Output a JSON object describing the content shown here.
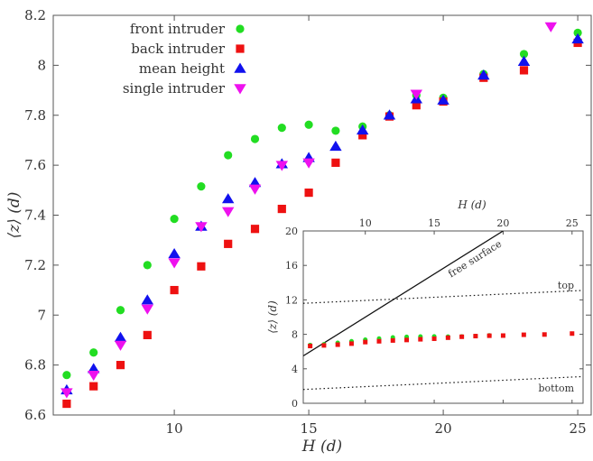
{
  "chart_data": [
    {
      "type": "scatter",
      "xlabel": "H (d)",
      "ylabel": "⟨z⟩ (d)",
      "xlim": [
        5.5,
        25.5
      ],
      "ylim": [
        6.6,
        8.2
      ],
      "xticks": [
        "10",
        "15",
        "20",
        "25"
      ],
      "yticks": [
        "6.6",
        "6.8",
        "7",
        "7.2",
        "7.4",
        "7.6",
        "7.8",
        "8",
        "8.2"
      ],
      "legend_position": "top-left",
      "series": [
        {
          "name": "front intruder",
          "marker": "circle",
          "color": "#22dd22",
          "points": [
            [
              6,
              6.76
            ],
            [
              7,
              6.85
            ],
            [
              8,
              7.02
            ],
            [
              9,
              7.2
            ],
            [
              10,
              7.385
            ],
            [
              11,
              7.515
            ],
            [
              12,
              7.64
            ],
            [
              13,
              7.705
            ],
            [
              14,
              7.75
            ],
            [
              15,
              7.762
            ],
            [
              16,
              7.738
            ],
            [
              17,
              7.755
            ],
            [
              18,
              7.8
            ],
            [
              19,
              7.88
            ],
            [
              20,
              7.87
            ],
            [
              21.5,
              7.965
            ],
            [
              23,
              8.045
            ],
            [
              25,
              8.13
            ]
          ]
        },
        {
          "name": "back intruder",
          "marker": "square",
          "color": "#ee1111",
          "points": [
            [
              6,
              6.645
            ],
            [
              7,
              6.715
            ],
            [
              8,
              6.8
            ],
            [
              9,
              6.92
            ],
            [
              10,
              7.1
            ],
            [
              11,
              7.195
            ],
            [
              12,
              7.285
            ],
            [
              13,
              7.345
            ],
            [
              14,
              7.425
            ],
            [
              15,
              7.49
            ],
            [
              16,
              7.61
            ],
            [
              17,
              7.72
            ],
            [
              18,
              7.795
            ],
            [
              19,
              7.84
            ],
            [
              20,
              7.855
            ],
            [
              21.5,
              7.95
            ],
            [
              23,
              7.98
            ],
            [
              25,
              8.09
            ]
          ]
        },
        {
          "name": "mean height",
          "marker": "triangle-up",
          "color": "#1111ee",
          "points": [
            [
              6,
              6.7
            ],
            [
              7,
              6.785
            ],
            [
              8,
              6.91
            ],
            [
              9,
              7.06
            ],
            [
              10,
              7.245
            ],
            [
              11,
              7.355
            ],
            [
              12,
              7.465
            ],
            [
              13,
              7.53
            ],
            [
              14,
              7.605
            ],
            [
              15,
              7.63
            ],
            [
              16,
              7.675
            ],
            [
              17,
              7.74
            ],
            [
              18,
              7.8
            ],
            [
              19,
              7.865
            ],
            [
              20,
              7.86
            ],
            [
              21.5,
              7.96
            ],
            [
              23,
              8.015
            ],
            [
              25,
              8.105
            ]
          ]
        },
        {
          "name": "single intruder",
          "marker": "triangle-down",
          "color": "#ee11ee",
          "points": [
            [
              6,
              6.69
            ],
            [
              7,
              6.76
            ],
            [
              8,
              6.88
            ],
            [
              9,
              7.025
            ],
            [
              10,
              7.21
            ],
            [
              11,
              7.355
            ],
            [
              12,
              7.415
            ],
            [
              13,
              7.505
            ],
            [
              14,
              7.6
            ],
            [
              15,
              7.61
            ],
            [
              19,
              7.885
            ],
            [
              24,
              8.155
            ]
          ]
        }
      ]
    },
    {
      "type": "scatter",
      "inset": true,
      "xlabel": "H (d)",
      "ylabel": "⟨z⟩ (d)",
      "xlim": [
        5.5,
        25.8
      ],
      "ylim": [
        0,
        20
      ],
      "xticks": [
        "10",
        "15",
        "20",
        "25"
      ],
      "yticks": [
        "0",
        "4",
        "8",
        "12",
        "16",
        "20"
      ],
      "annotations": [
        "free surface",
        "top",
        "bottom"
      ],
      "lines": [
        {
          "name": "free surface",
          "style": "solid",
          "points": [
            [
              5.5,
              5.5
            ],
            [
              20,
              20
            ]
          ]
        },
        {
          "name": "top",
          "style": "dotted",
          "points": [
            [
              5.5,
              11.6
            ],
            [
              25.8,
              13.1
            ]
          ]
        },
        {
          "name": "bottom",
          "style": "dotted",
          "points": [
            [
              5.5,
              1.6
            ],
            [
              25.8,
              3.1
            ]
          ]
        }
      ],
      "series": [
        {
          "marker": "circle",
          "color": "#22dd22",
          "points": [
            [
              6,
              6.76
            ],
            [
              7,
              6.85
            ],
            [
              8,
              7.02
            ],
            [
              9,
              7.2
            ],
            [
              10,
              7.385
            ],
            [
              11,
              7.515
            ],
            [
              12,
              7.64
            ],
            [
              13,
              7.705
            ],
            [
              14,
              7.75
            ],
            [
              15,
              7.762
            ],
            [
              16,
              7.738
            ],
            [
              17,
              7.755
            ],
            [
              18,
              7.8
            ],
            [
              19,
              7.88
            ]
          ]
        },
        {
          "marker": "square",
          "color": "#ee1111",
          "points": [
            [
              6,
              6.645
            ],
            [
              7,
              6.715
            ],
            [
              8,
              6.8
            ],
            [
              9,
              6.92
            ],
            [
              10,
              7.1
            ],
            [
              11,
              7.195
            ],
            [
              12,
              7.285
            ],
            [
              13,
              7.345
            ],
            [
              14,
              7.425
            ],
            [
              15,
              7.49
            ],
            [
              16,
              7.61
            ],
            [
              17,
              7.72
            ],
            [
              18,
              7.795
            ],
            [
              19,
              7.84
            ],
            [
              20,
              7.855
            ],
            [
              21.5,
              7.95
            ],
            [
              23,
              7.98
            ],
            [
              25,
              8.09
            ]
          ]
        }
      ]
    }
  ]
}
